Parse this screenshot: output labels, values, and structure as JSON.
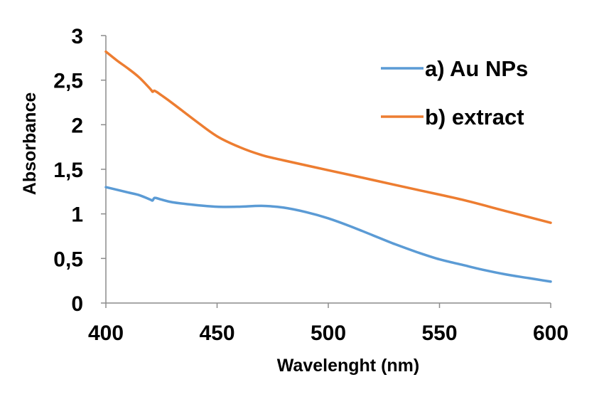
{
  "chart_data": {
    "type": "line",
    "xlabel": "Wavelenght (nm)",
    "ylabel": "Absorbance",
    "xlim": [
      400,
      600
    ],
    "ylim": [
      0,
      3
    ],
    "xticks": [
      400,
      450,
      500,
      550,
      600
    ],
    "xtick_labels": [
      "400",
      "450",
      "500",
      "550",
      "600"
    ],
    "yticks": [
      0,
      0.5,
      1,
      1.5,
      2,
      2.5,
      3
    ],
    "ytick_labels": [
      "0",
      "0,5",
      "1",
      "1,5",
      "2",
      "2,5",
      "3"
    ],
    "grid": false,
    "legend_position": "top-right",
    "series": [
      {
        "name": "a) Au NPs",
        "color": "#5B9BD5",
        "x": [
          400,
          405,
          410,
          415,
          420,
          421,
          422,
          425,
          430,
          440,
          450,
          460,
          470,
          480,
          490,
          500,
          510,
          520,
          530,
          540,
          550,
          560,
          570,
          580,
          590,
          600
        ],
        "y": [
          1.3,
          1.27,
          1.24,
          1.21,
          1.16,
          1.15,
          1.18,
          1.16,
          1.13,
          1.1,
          1.08,
          1.08,
          1.09,
          1.07,
          1.02,
          0.95,
          0.86,
          0.76,
          0.66,
          0.57,
          0.49,
          0.43,
          0.37,
          0.32,
          0.28,
          0.24
        ]
      },
      {
        "name": "b) extract",
        "color": "#ED7D31",
        "x": [
          400,
          405,
          410,
          415,
          420,
          421,
          422,
          425,
          430,
          440,
          450,
          460,
          470,
          480,
          500,
          520,
          540,
          560,
          580,
          600
        ],
        "y": [
          2.82,
          2.72,
          2.63,
          2.53,
          2.4,
          2.37,
          2.38,
          2.33,
          2.24,
          2.05,
          1.87,
          1.75,
          1.66,
          1.6,
          1.49,
          1.38,
          1.27,
          1.16,
          1.03,
          0.9
        ]
      }
    ]
  }
}
